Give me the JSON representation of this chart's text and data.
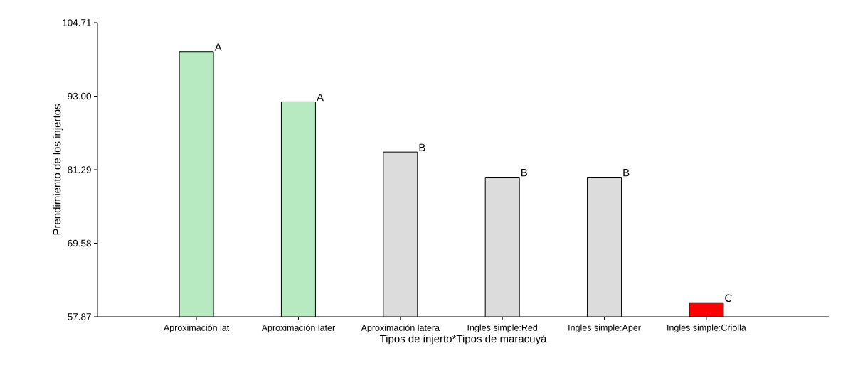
{
  "chart_data": {
    "type": "bar",
    "xlabel": "Tipos de injerto*Tipos de maracuyá",
    "ylabel": "Prendimiento de los injertos",
    "categories": [
      "Aproximación lat",
      "Aproximación later",
      "Aproximación latera",
      "Ingles simple:Red",
      "Ingles simple:Aper",
      "Ingles simple:Criolla"
    ],
    "values": [
      100.1,
      92.1,
      84.1,
      80.1,
      80.1,
      60.1
    ],
    "colors": [
      "#b7eac0",
      "#b7eac0",
      "#dcdcdc",
      "#dcdcdc",
      "#dcdcdc",
      "#ff0000"
    ],
    "ylim": [
      57.87,
      104.71
    ],
    "yticks": [
      57.87,
      {
        "value": 69.58,
        "label": "69.58"
      },
      {
        "value": 81.29,
        "label": "81.29"
      },
      {
        "value": 93,
        "label": "93.00"
      },
      104.71
    ],
    "annotations": [
      {
        "text": "A",
        "x": "Aproximación lat",
        "y": 100.1
      },
      {
        "text": "A",
        "x": "Aproximación later",
        "y": 92.1
      },
      {
        "text": "B",
        "x": "Aproximación latera",
        "y": 84.1
      },
      {
        "text": "B",
        "x": "Ingles simple:Red",
        "y": 80.1
      },
      {
        "text": "B",
        "x": "Ingles simple:Aper",
        "y": 80.1
      },
      {
        "text": "C",
        "x": "Ingles simple:Criolla",
        "y": 60.1
      }
    ]
  }
}
